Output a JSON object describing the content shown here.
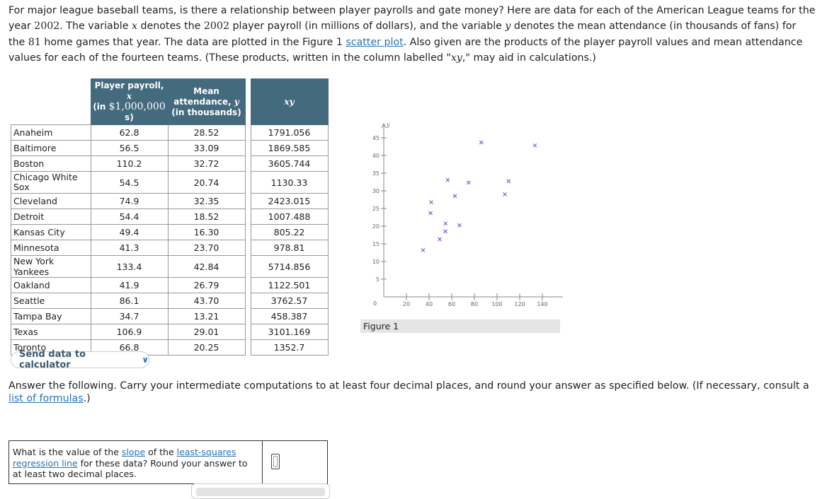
{
  "intro": {
    "p1": "For major league baseball teams, is there a relationship between player payrolls and gate money? Here are data for each of the American League teams for the year ",
    "year1": "2002",
    "p2": ". The variable ",
    "x": "x",
    "p3": " denotes the ",
    "year2": "2002",
    "p4": " player payroll (in millions of dollars), and the variable ",
    "y": "y",
    "p5": " denotes the mean attendance (in thousands of fans) for the ",
    "games": "81",
    "p6": " home games that year. The data are plotted in the Figure 1 ",
    "scatter_link": "scatter plot",
    "p7": ". Also given are the products of the player payroll values and mean attendance values for each of the fourteen teams. (These products, written in the column labelled \"",
    "xy": "xy",
    "p8": ",\" may aid in calculations.)"
  },
  "table": {
    "h_payroll_a": "Player payroll, ",
    "h_payroll_var": "x",
    "h_payroll_b": "(in ",
    "h_payroll_num": "$1,000,000",
    "h_payroll_c": "s)",
    "h_att_a": "Mean",
    "h_att_b": "attendance, ",
    "h_att_var": "y",
    "h_att_c": "(in thousands)",
    "h_xy": "xy",
    "rows": [
      {
        "team": "Anaheim",
        "x": "62.8",
        "y": "28.52",
        "xy": "1791.056"
      },
      {
        "team": "Baltimore",
        "x": "56.5",
        "y": "33.09",
        "xy": "1869.585"
      },
      {
        "team": "Boston",
        "x": "110.2",
        "y": "32.72",
        "xy": "3605.744"
      },
      {
        "team": "Chicago White Sox",
        "x": "54.5",
        "y": "20.74",
        "xy": "1130.33"
      },
      {
        "team": "Cleveland",
        "x": "74.9",
        "y": "32.35",
        "xy": "2423.015"
      },
      {
        "team": "Detroit",
        "x": "54.4",
        "y": "18.52",
        "xy": "1007.488"
      },
      {
        "team": "Kansas City",
        "x": "49.4",
        "y": "16.30",
        "xy": "805.22"
      },
      {
        "team": "Minnesota",
        "x": "41.3",
        "y": "23.70",
        "xy": "978.81"
      },
      {
        "team": "New York Yankees",
        "x": "133.4",
        "y": "42.84",
        "xy": "5714.856"
      },
      {
        "team": "Oakland",
        "x": "41.9",
        "y": "26.79",
        "xy": "1122.501"
      },
      {
        "team": "Seattle",
        "x": "86.1",
        "y": "43.70",
        "xy": "3762.57"
      },
      {
        "team": "Tampa Bay",
        "x": "34.7",
        "y": "13.21",
        "xy": "458.387"
      },
      {
        "team": "Texas",
        "x": "106.9",
        "y": "29.01",
        "xy": "3101.169"
      },
      {
        "team": "Toronto",
        "x": "66.8",
        "y": "20.25",
        "xy": "1352.7"
      }
    ]
  },
  "send_button": {
    "label": "Send data to calculator",
    "icon": "chevron-down-icon"
  },
  "figure_caption": "Figure 1",
  "chart_data": {
    "type": "scatter",
    "xlabel": "x",
    "ylabel": "y",
    "xlim": [
      0,
      150
    ],
    "ylim": [
      0,
      48
    ],
    "xticks": [
      20,
      40,
      60,
      80,
      100,
      120,
      140
    ],
    "yticks": [
      5,
      10,
      15,
      20,
      25,
      30,
      35,
      40,
      45
    ],
    "origin_label": "0",
    "marker": "x",
    "marker_color": "#5555cc",
    "points": [
      {
        "x": 62.8,
        "y": 28.52
      },
      {
        "x": 56.5,
        "y": 33.09
      },
      {
        "x": 110.2,
        "y": 32.72
      },
      {
        "x": 54.5,
        "y": 20.74
      },
      {
        "x": 74.9,
        "y": 32.35
      },
      {
        "x": 54.4,
        "y": 18.52
      },
      {
        "x": 49.4,
        "y": 16.3
      },
      {
        "x": 41.3,
        "y": 23.7
      },
      {
        "x": 133.4,
        "y": 42.84
      },
      {
        "x": 41.9,
        "y": 26.79
      },
      {
        "x": 86.1,
        "y": 43.7
      },
      {
        "x": 34.7,
        "y": 13.21
      },
      {
        "x": 106.9,
        "y": 29.01
      },
      {
        "x": 66.8,
        "y": 20.25
      }
    ]
  },
  "answer": {
    "text": "Answer the following. Carry your intermediate computations to at least four decimal places, and round your answer as specified below. (If necessary, consult a ",
    "link": "list of formulas",
    "end": ".)"
  },
  "question": {
    "pre": "What is the value of the ",
    "slope_link": "slope",
    "mid": " of the ",
    "lsr_link_a": "least-squares",
    "lsr_link_b": "regression line",
    "post": " for these data? Round your answer to at least two decimal places.",
    "answer_value": ""
  },
  "colors": {
    "header_bg": "#436a7d",
    "link": "#2a73b8",
    "marker": "#5555cc"
  }
}
